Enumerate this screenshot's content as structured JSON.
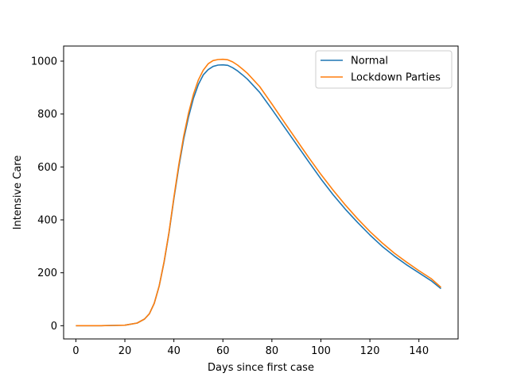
{
  "chart_data": {
    "type": "line",
    "title": "",
    "xlabel": "Days since first case",
    "ylabel": "Intensive Care",
    "xlim": [
      -5,
      156
    ],
    "ylim": [
      -50,
      1057
    ],
    "xticks": [
      0,
      20,
      40,
      60,
      80,
      100,
      120,
      140
    ],
    "yticks": [
      0,
      200,
      400,
      600,
      800,
      1000
    ],
    "grid": false,
    "legend_position": "top-right",
    "x": [
      0,
      5,
      10,
      15,
      20,
      25,
      28,
      30,
      32,
      34,
      36,
      38,
      40,
      42,
      44,
      46,
      48,
      50,
      52,
      54,
      56,
      58,
      60,
      62,
      64,
      66,
      68,
      70,
      75,
      80,
      85,
      90,
      95,
      100,
      105,
      110,
      115,
      120,
      125,
      130,
      135,
      140,
      145,
      149
    ],
    "series": [
      {
        "name": "Normal",
        "color": "#1f77b4",
        "values": [
          0,
          0,
          0,
          1,
          2,
          10,
          25,
          45,
          85,
          150,
          240,
          350,
          480,
          600,
          705,
          790,
          860,
          912,
          948,
          968,
          980,
          985,
          986,
          984,
          975,
          963,
          948,
          932,
          882,
          818,
          752,
          686,
          620,
          555,
          495,
          440,
          390,
          343,
          300,
          263,
          230,
          200,
          170,
          140
        ]
      },
      {
        "name": "Lockdown Parties",
        "color": "#ff7f0e",
        "values": [
          0,
          0,
          0,
          1,
          2,
          10,
          25,
          45,
          85,
          150,
          242,
          353,
          485,
          608,
          716,
          804,
          875,
          929,
          966,
          990,
          1002,
          1006,
          1007,
          1005,
          997,
          985,
          970,
          954,
          904,
          838,
          770,
          703,
          636,
          572,
          512,
          456,
          404,
          356,
          313,
          274,
          240,
          208,
          178,
          145
        ]
      }
    ]
  }
}
